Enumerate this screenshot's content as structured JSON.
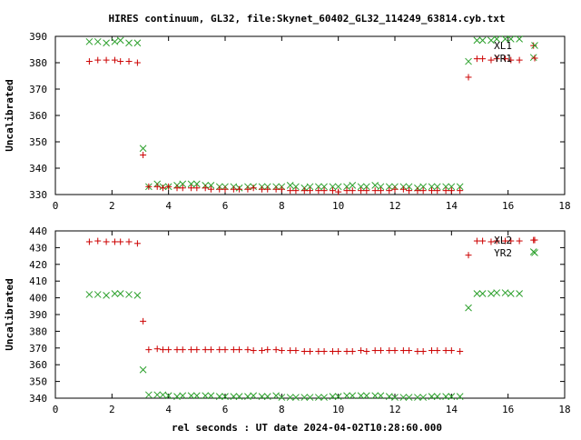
{
  "title": "HIRES continuum, GL32, file:Skynet_60402_GL32_114249_63814.cyb.txt",
  "xlabel": "rel seconds : UT date 2024-04-02T10:28:60.000",
  "colors": {
    "red": "#cc0000",
    "green": "#2ca02c",
    "axis": "#000000"
  },
  "chart_data": [
    {
      "type": "scatter",
      "title": "HIRES continuum, GL32, file:Skynet_60402_GL32_114249_63814.cyb.txt",
      "ylabel": "Uncalibrated",
      "xlabel": "",
      "xlim": [
        0,
        18
      ],
      "ylim": [
        330,
        390
      ],
      "xticks": [
        0,
        2,
        4,
        6,
        8,
        10,
        12,
        14,
        16,
        18
      ],
      "yticks": [
        330,
        340,
        350,
        360,
        370,
        380,
        390
      ],
      "legend_position": "top-right",
      "series": [
        {
          "name": "XL1",
          "marker": "x",
          "color": "#2ca02c",
          "points": [
            [
              1.2,
              388
            ],
            [
              1.5,
              388
            ],
            [
              1.8,
              387.5
            ],
            [
              2.1,
              388
            ],
            [
              2.3,
              388.5
            ],
            [
              2.6,
              387.5
            ],
            [
              2.9,
              387.5
            ],
            [
              3.1,
              347.5
            ],
            [
              3.3,
              333
            ],
            [
              3.6,
              334
            ],
            [
              3.8,
              333
            ],
            [
              4.0,
              333
            ],
            [
              4.3,
              333.5
            ],
            [
              4.5,
              334
            ],
            [
              4.8,
              334
            ],
            [
              5.0,
              334
            ],
            [
              5.3,
              333.5
            ],
            [
              5.5,
              333.5
            ],
            [
              5.8,
              333
            ],
            [
              6.0,
              333
            ],
            [
              6.3,
              333
            ],
            [
              6.5,
              332.5
            ],
            [
              6.8,
              333
            ],
            [
              7.0,
              333
            ],
            [
              7.3,
              333
            ],
            [
              7.5,
              333
            ],
            [
              7.8,
              333
            ],
            [
              8.0,
              333
            ],
            [
              8.3,
              333.5
            ],
            [
              8.5,
              333
            ],
            [
              8.8,
              332.5
            ],
            [
              9.0,
              333
            ],
            [
              9.3,
              333
            ],
            [
              9.5,
              333
            ],
            [
              9.8,
              333
            ],
            [
              10.0,
              333
            ],
            [
              10.3,
              333
            ],
            [
              10.5,
              333.5
            ],
            [
              10.8,
              333
            ],
            [
              11.0,
              333
            ],
            [
              11.3,
              333.5
            ],
            [
              11.5,
              333
            ],
            [
              11.8,
              333
            ],
            [
              12.0,
              333
            ],
            [
              12.3,
              333
            ],
            [
              12.5,
              333
            ],
            [
              12.8,
              332.5
            ],
            [
              13.0,
              333
            ],
            [
              13.3,
              333
            ],
            [
              13.5,
              333
            ],
            [
              13.8,
              333
            ],
            [
              14.0,
              333
            ],
            [
              14.3,
              333
            ],
            [
              14.6,
              380.5
            ],
            [
              14.9,
              388.5
            ],
            [
              15.1,
              388.5
            ],
            [
              15.4,
              388.5
            ],
            [
              15.6,
              389
            ],
            [
              15.9,
              389
            ],
            [
              16.1,
              389
            ],
            [
              16.4,
              389
            ],
            [
              16.9,
              382
            ]
          ]
        },
        {
          "name": "YR1",
          "marker": "+",
          "color": "#cc0000",
          "points": [
            [
              1.2,
              380.5
            ],
            [
              1.5,
              381
            ],
            [
              1.8,
              381
            ],
            [
              2.1,
              381
            ],
            [
              2.3,
              380.5
            ],
            [
              2.6,
              380.5
            ],
            [
              2.9,
              380
            ],
            [
              3.1,
              345
            ],
            [
              3.3,
              333
            ],
            [
              3.6,
              333
            ],
            [
              3.8,
              332.5
            ],
            [
              4.0,
              333
            ],
            [
              4.3,
              332.5
            ],
            [
              4.5,
              332.5
            ],
            [
              4.8,
              332.5
            ],
            [
              5.0,
              332.5
            ],
            [
              5.3,
              332.5
            ],
            [
              5.5,
              332
            ],
            [
              5.8,
              332
            ],
            [
              6.0,
              332
            ],
            [
              6.3,
              332
            ],
            [
              6.5,
              332
            ],
            [
              6.8,
              332
            ],
            [
              7.0,
              332.5
            ],
            [
              7.3,
              332
            ],
            [
              7.5,
              332
            ],
            [
              7.8,
              332
            ],
            [
              8.0,
              332
            ],
            [
              8.3,
              331.5
            ],
            [
              8.5,
              331.5
            ],
            [
              8.8,
              331.5
            ],
            [
              9.0,
              331.5
            ],
            [
              9.3,
              331.5
            ],
            [
              9.5,
              331.5
            ],
            [
              9.8,
              331.5
            ],
            [
              10.0,
              331
            ],
            [
              10.3,
              331.5
            ],
            [
              10.5,
              331.5
            ],
            [
              10.8,
              331.5
            ],
            [
              11.0,
              331.5
            ],
            [
              11.3,
              331.5
            ],
            [
              11.5,
              331.5
            ],
            [
              11.8,
              331.5
            ],
            [
              12.0,
              332
            ],
            [
              12.3,
              332
            ],
            [
              12.5,
              331.5
            ],
            [
              12.8,
              331.5
            ],
            [
              13.0,
              331.5
            ],
            [
              13.3,
              331.5
            ],
            [
              13.5,
              331.5
            ],
            [
              13.8,
              331.5
            ],
            [
              14.0,
              331.5
            ],
            [
              14.3,
              331.5
            ],
            [
              14.6,
              374.5
            ],
            [
              14.9,
              381.5
            ],
            [
              15.1,
              381.5
            ],
            [
              15.4,
              381
            ],
            [
              15.6,
              381.5
            ],
            [
              15.9,
              381.5
            ],
            [
              16.1,
              381
            ],
            [
              16.4,
              381
            ],
            [
              16.9,
              386.5
            ]
          ]
        }
      ]
    },
    {
      "type": "scatter",
      "ylabel": "Uncalibrated",
      "xlabel": "rel seconds : UT date 2024-04-02T10:28:60.000",
      "xlim": [
        0,
        18
      ],
      "ylim": [
        340,
        440
      ],
      "xticks": [
        0,
        2,
        4,
        6,
        8,
        10,
        12,
        14,
        16,
        18
      ],
      "yticks": [
        340,
        350,
        360,
        370,
        380,
        390,
        400,
        410,
        420,
        430,
        440
      ],
      "legend_position": "top-right",
      "series": [
        {
          "name": "XL2",
          "marker": "+",
          "color": "#cc0000",
          "points": [
            [
              1.2,
              433.5
            ],
            [
              1.5,
              434
            ],
            [
              1.8,
              433.5
            ],
            [
              2.1,
              433.5
            ],
            [
              2.3,
              433.5
            ],
            [
              2.6,
              433.5
            ],
            [
              2.9,
              432.5
            ],
            [
              3.1,
              386
            ],
            [
              3.3,
              369
            ],
            [
              3.6,
              369.5
            ],
            [
              3.8,
              369
            ],
            [
              4.0,
              369
            ],
            [
              4.3,
              369
            ],
            [
              4.5,
              369
            ],
            [
              4.8,
              369
            ],
            [
              5.0,
              369
            ],
            [
              5.3,
              369
            ],
            [
              5.5,
              369
            ],
            [
              5.8,
              369
            ],
            [
              6.0,
              369
            ],
            [
              6.3,
              369
            ],
            [
              6.5,
              369
            ],
            [
              6.8,
              369
            ],
            [
              7.0,
              368.5
            ],
            [
              7.3,
              368.5
            ],
            [
              7.5,
              369
            ],
            [
              7.8,
              369
            ],
            [
              8.0,
              368.5
            ],
            [
              8.3,
              368.5
            ],
            [
              8.5,
              368.5
            ],
            [
              8.8,
              368
            ],
            [
              9.0,
              368
            ],
            [
              9.3,
              368
            ],
            [
              9.5,
              368
            ],
            [
              9.8,
              368
            ],
            [
              10.0,
              368
            ],
            [
              10.3,
              368
            ],
            [
              10.5,
              368
            ],
            [
              10.8,
              368.5
            ],
            [
              11.0,
              368
            ],
            [
              11.3,
              368.5
            ],
            [
              11.5,
              368.5
            ],
            [
              11.8,
              368.5
            ],
            [
              12.0,
              368.5
            ],
            [
              12.3,
              368.5
            ],
            [
              12.5,
              368.5
            ],
            [
              12.8,
              368
            ],
            [
              13.0,
              368
            ],
            [
              13.3,
              368.5
            ],
            [
              13.5,
              368.5
            ],
            [
              13.8,
              368.5
            ],
            [
              14.0,
              368.5
            ],
            [
              14.3,
              368
            ],
            [
              14.6,
              425.5
            ],
            [
              14.9,
              434
            ],
            [
              15.1,
              434
            ],
            [
              15.4,
              433.5
            ],
            [
              15.6,
              434
            ],
            [
              15.9,
              434
            ],
            [
              16.1,
              434
            ],
            [
              16.4,
              434
            ],
            [
              16.9,
              434.5
            ]
          ]
        },
        {
          "name": "YR2",
          "marker": "x",
          "color": "#2ca02c",
          "points": [
            [
              1.2,
              402
            ],
            [
              1.5,
              402
            ],
            [
              1.8,
              401.5
            ],
            [
              2.1,
              402.5
            ],
            [
              2.3,
              402.5
            ],
            [
              2.6,
              402
            ],
            [
              2.9,
              401.5
            ],
            [
              3.1,
              357
            ],
            [
              3.3,
              342
            ],
            [
              3.6,
              342
            ],
            [
              3.8,
              342
            ],
            [
              4.0,
              341.5
            ],
            [
              4.3,
              341
            ],
            [
              4.5,
              341.5
            ],
            [
              4.8,
              341.5
            ],
            [
              5.0,
              341.5
            ],
            [
              5.3,
              341.5
            ],
            [
              5.5,
              341.5
            ],
            [
              5.8,
              341
            ],
            [
              6.0,
              341
            ],
            [
              6.3,
              341
            ],
            [
              6.5,
              341
            ],
            [
              6.8,
              341
            ],
            [
              7.0,
              341.5
            ],
            [
              7.3,
              341
            ],
            [
              7.5,
              341
            ],
            [
              7.8,
              341.5
            ],
            [
              8.0,
              340.5
            ],
            [
              8.3,
              340.5
            ],
            [
              8.5,
              340.5
            ],
            [
              8.8,
              340.5
            ],
            [
              9.0,
              340.5
            ],
            [
              9.3,
              340.5
            ],
            [
              9.5,
              340.5
            ],
            [
              9.8,
              341
            ],
            [
              10.0,
              341
            ],
            [
              10.3,
              341.5
            ],
            [
              10.5,
              341.5
            ],
            [
              10.8,
              341.5
            ],
            [
              11.0,
              341.5
            ],
            [
              11.3,
              341.5
            ],
            [
              11.5,
              341.5
            ],
            [
              11.8,
              341
            ],
            [
              12.0,
              340.5
            ],
            [
              12.3,
              340.5
            ],
            [
              12.5,
              340.5
            ],
            [
              12.8,
              340.5
            ],
            [
              13.0,
              340.5
            ],
            [
              13.3,
              341
            ],
            [
              13.5,
              341
            ],
            [
              13.8,
              341
            ],
            [
              14.0,
              341
            ],
            [
              14.3,
              341
            ],
            [
              14.6,
              394
            ],
            [
              14.9,
              402.5
            ],
            [
              15.1,
              402.5
            ],
            [
              15.4,
              402.5
            ],
            [
              15.6,
              403
            ],
            [
              15.9,
              403
            ],
            [
              16.1,
              402.5
            ],
            [
              16.4,
              402.5
            ],
            [
              16.9,
              427.5
            ]
          ]
        }
      ]
    }
  ]
}
